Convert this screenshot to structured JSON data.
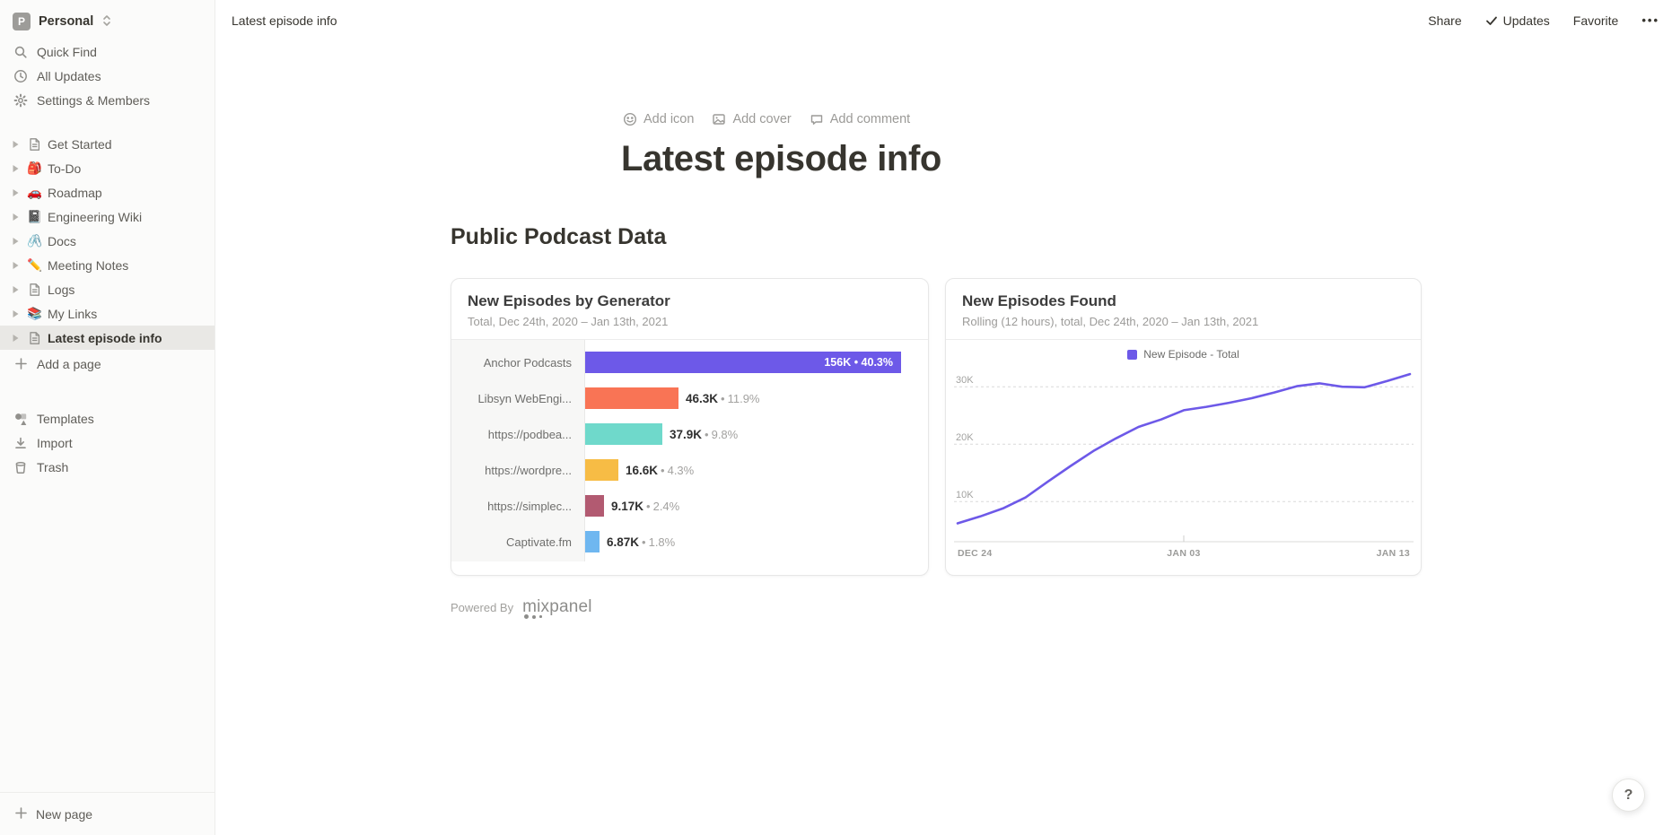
{
  "workspace": {
    "avatar_letter": "P",
    "name": "Personal"
  },
  "sidebar": {
    "menu": [
      {
        "label": "Quick Find",
        "icon": "search-icon"
      },
      {
        "label": "All Updates",
        "icon": "clock-icon"
      },
      {
        "label": "Settings & Members",
        "icon": "gear-icon"
      }
    ],
    "pages": [
      {
        "label": "Get Started",
        "icon": "page-icon",
        "glyph": ""
      },
      {
        "label": "To-Do",
        "icon": "backpack-emoji-icon",
        "glyph": "🎒"
      },
      {
        "label": "Roadmap",
        "icon": "car-emoji-icon",
        "glyph": "🚗"
      },
      {
        "label": "Engineering Wiki",
        "icon": "notebook-emoji-icon",
        "glyph": "📓"
      },
      {
        "label": "Docs",
        "icon": "paperclip-emoji-icon",
        "glyph": "🖇️"
      },
      {
        "label": "Meeting Notes",
        "icon": "pencil-emoji-icon",
        "glyph": "✏️"
      },
      {
        "label": "Logs",
        "icon": "page-icon",
        "glyph": ""
      },
      {
        "label": "My Links",
        "icon": "books-emoji-icon",
        "glyph": "📚"
      },
      {
        "label": "Latest episode info",
        "icon": "page-icon",
        "glyph": "",
        "selected": true
      }
    ],
    "add_page_label": "Add a page",
    "footer": [
      {
        "label": "Templates",
        "icon": "templates-icon"
      },
      {
        "label": "Import",
        "icon": "import-icon"
      },
      {
        "label": "Trash",
        "icon": "trash-icon"
      }
    ],
    "new_page_label": "New page"
  },
  "topbar": {
    "breadcrumb": "Latest episode info",
    "share": "Share",
    "updates": "Updates",
    "favorite": "Favorite",
    "more": "•••"
  },
  "page": {
    "add_icon": "Add icon",
    "add_cover": "Add cover",
    "add_comment": "Add comment",
    "title": "Latest episode info",
    "section_heading": "Public Podcast Data",
    "powered_by": "Powered By",
    "logo_text": "mixpanel"
  },
  "help_label": "?",
  "chart_data": [
    {
      "type": "bar",
      "orientation": "horizontal",
      "title": "New Episodes by Generator",
      "subtitle": "Total, Dec 24th, 2020 – Jan 13th, 2021",
      "categories": [
        "Anchor Podcasts",
        "Libsyn WebEngi...",
        "https://podbea...",
        "https://wordpre...",
        "https://simplec...",
        "Captivate.fm"
      ],
      "values": [
        156000,
        46300,
        37900,
        16600,
        9170,
        6870
      ],
      "value_labels": [
        "156K",
        "46.3K",
        "37.9K",
        "16.6K",
        "9.17K",
        "6.87K"
      ],
      "percent_labels": [
        "40.3%",
        "11.9%",
        "9.8%",
        "4.3%",
        "2.4%",
        "1.8%"
      ],
      "colors": [
        "#6D59E8",
        "#F97455",
        "#6FD9CB",
        "#F7BC45",
        "#B25A71",
        "#6FB7F0"
      ],
      "value_inside_bar": [
        true,
        false,
        false,
        false,
        false,
        false
      ],
      "xlim": [
        0,
        160000
      ],
      "grid": false
    },
    {
      "type": "line",
      "title": "New Episodes Found",
      "subtitle": "Rolling (12 hours), total, Dec 24th, 2020 – Jan 13th, 2021",
      "legend": [
        {
          "name": "New Episode - Total",
          "color": "#6D59E8"
        }
      ],
      "legend_position": "top-center",
      "line_color": "#6D59E8",
      "x": [
        "Dec 24",
        "Dec 25",
        "Dec 26",
        "Dec 27",
        "Dec 28",
        "Dec 29",
        "Dec 30",
        "Dec 31",
        "Jan 01",
        "Jan 02",
        "Jan 03",
        "Jan 04",
        "Jan 05",
        "Jan 06",
        "Jan 07",
        "Jan 08",
        "Jan 09",
        "Jan 10",
        "Jan 11",
        "Jan 12",
        "Jan 13"
      ],
      "values": [
        6200,
        7400,
        8800,
        10700,
        13500,
        16200,
        18800,
        21000,
        23000,
        24300,
        25900,
        26500,
        27200,
        28000,
        29000,
        30100,
        30600,
        30000,
        29900,
        31000,
        32200
      ],
      "x_tick_labels": [
        "DEC 24",
        "JAN 03",
        "JAN 13"
      ],
      "yticks": [
        {
          "value": 10000,
          "label": "10K"
        },
        {
          "value": 20000,
          "label": "20K"
        },
        {
          "value": 30000,
          "label": "30K"
        }
      ],
      "ylim": [
        3000,
        33000
      ],
      "grid": "dashed-horizontal"
    }
  ]
}
